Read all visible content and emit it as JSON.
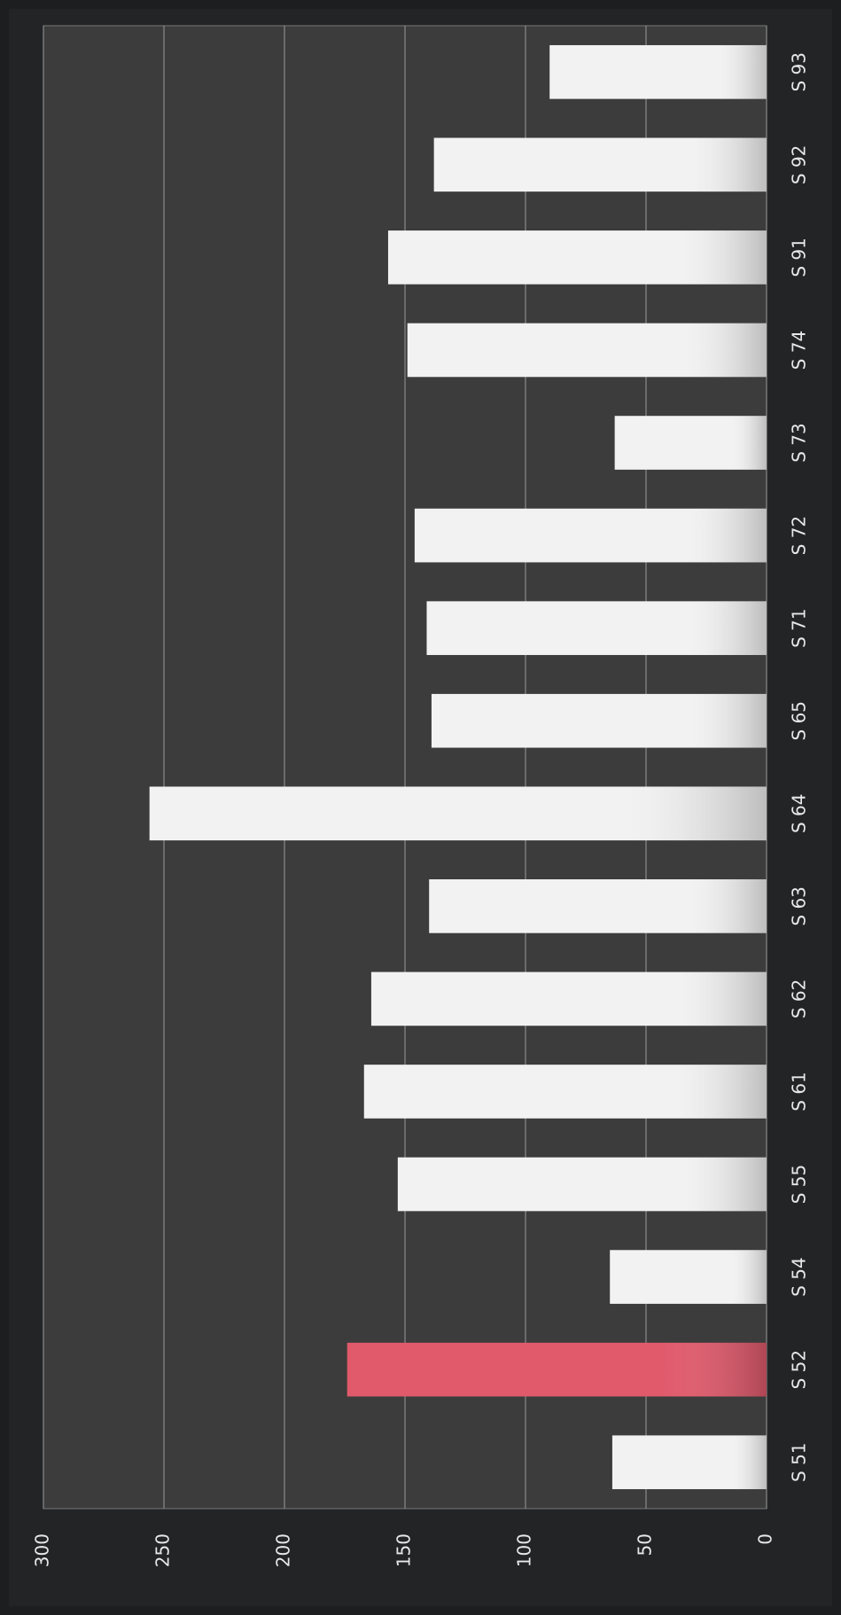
{
  "chart_data": {
    "type": "bar",
    "categories": [
      "S 51",
      "S 52",
      "S 54",
      "S 55",
      "S 61",
      "S 62",
      "S 63",
      "S 64",
      "S 65",
      "S 71",
      "S 72",
      "S 73",
      "S 74",
      "S 91",
      "S 92",
      "S 93"
    ],
    "values": [
      64,
      174,
      65,
      153,
      167,
      164,
      140,
      256,
      139,
      141,
      146,
      63,
      149,
      157,
      138,
      90
    ],
    "colors": [
      "#f2f2f2",
      "#e05a6c",
      "#f2f2f2",
      "#f2f2f2",
      "#f2f2f2",
      "#f2f2f2",
      "#f2f2f2",
      "#f2f2f2",
      "#f2f2f2",
      "#f2f2f2",
      "#f2f2f2",
      "#f2f2f2",
      "#f2f2f2",
      "#f2f2f2",
      "#f2f2f2",
      "#f2f2f2"
    ],
    "ylim": [
      0,
      300
    ],
    "yticks": [
      0,
      50,
      100,
      150,
      200,
      250,
      300
    ],
    "grid": true
  }
}
